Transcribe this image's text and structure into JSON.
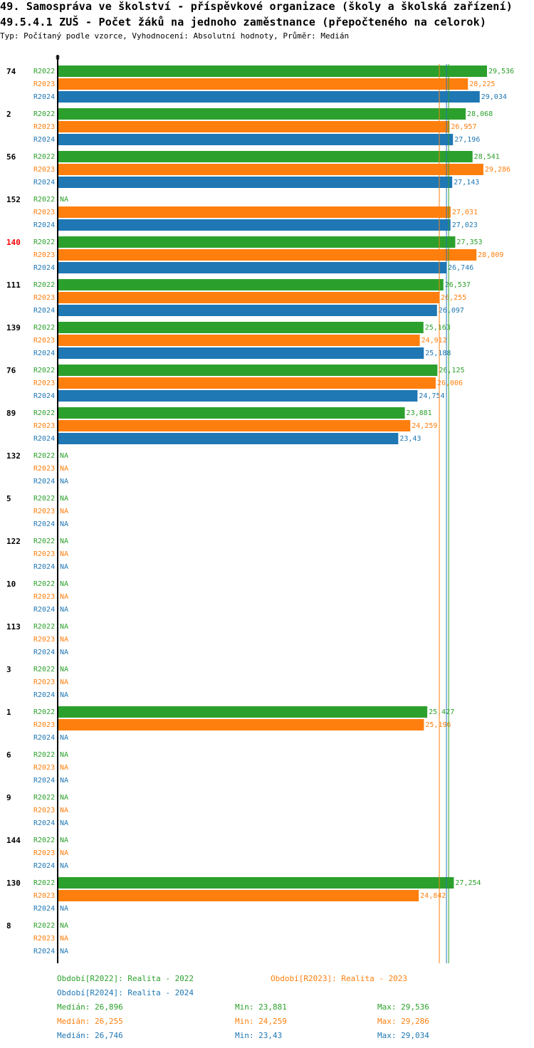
{
  "header": {
    "title_line1": "49. Samospráva ve školství - příspěvkové organizace (školy a školská zařízení)",
    "title_line2": "49.5.4.1 ZUŠ - Počet žáků na jednoho zaměstnance (přepočteného na celorok)",
    "subtitle": "Typ: Počítaný podle vzorce, Vyhodnocení: Absolutní hodnoty, Průměr: Medián"
  },
  "colors": {
    "R2022": "#2ca02c",
    "R2023": "#ff7f0e",
    "R2024": "#1f77b4",
    "highlight_label": "#ff0000"
  },
  "chart_data": {
    "type": "bar",
    "orientation": "horizontal",
    "axis_zero_label": "0",
    "xlim": [
      0,
      29.536
    ],
    "na_label": "NA",
    "highlight_category": "140",
    "series_names": [
      "R2022",
      "R2023",
      "R2024"
    ],
    "categories": [
      "74",
      "2",
      "56",
      "152",
      "140",
      "111",
      "139",
      "76",
      "89",
      "132",
      "5",
      "122",
      "10",
      "113",
      "3",
      "1",
      "6",
      "9",
      "144",
      "130",
      "8"
    ],
    "series": [
      {
        "name": "R2022",
        "values": [
          29.536,
          28.068,
          28.541,
          null,
          27.353,
          26.537,
          25.163,
          26.125,
          23.881,
          null,
          null,
          null,
          null,
          null,
          null,
          25.427,
          null,
          null,
          null,
          27.254,
          null
        ]
      },
      {
        "name": "R2023",
        "values": [
          28.225,
          26.957,
          29.286,
          27.031,
          28.809,
          26.255,
          24.912,
          26.006,
          24.259,
          null,
          null,
          null,
          null,
          null,
          null,
          25.196,
          null,
          null,
          null,
          24.842,
          null
        ]
      },
      {
        "name": "R2024",
        "values": [
          29.034,
          27.196,
          27.143,
          27.023,
          26.746,
          26.097,
          25.188,
          24.754,
          23.43,
          null,
          null,
          null,
          null,
          null,
          null,
          null,
          null,
          null,
          null,
          null,
          null
        ]
      }
    ],
    "value_labels": [
      [
        "29,536",
        "28,225",
        "29,034"
      ],
      [
        "28,068",
        "26,957",
        "27,196"
      ],
      [
        "28,541",
        "29,286",
        "27,143"
      ],
      [
        "NA",
        "27,031",
        "27,023"
      ],
      [
        "27,353",
        "28,809",
        "26,746"
      ],
      [
        "26,537",
        "26,255",
        "26,097"
      ],
      [
        "25,163",
        "24,912",
        "25,188"
      ],
      [
        "26,125",
        "26,006",
        "24,754"
      ],
      [
        "23,881",
        "24,259",
        "23,43"
      ],
      [
        "NA",
        "NA",
        "NA"
      ],
      [
        "NA",
        "NA",
        "NA"
      ],
      [
        "NA",
        "NA",
        "NA"
      ],
      [
        "NA",
        "NA",
        "NA"
      ],
      [
        "NA",
        "NA",
        "NA"
      ],
      [
        "NA",
        "NA",
        "NA"
      ],
      [
        "25,427",
        "25,196",
        "NA"
      ],
      [
        "NA",
        "NA",
        "NA"
      ],
      [
        "NA",
        "NA",
        "NA"
      ],
      [
        "NA",
        "NA",
        "NA"
      ],
      [
        "27,254",
        "24,842",
        "NA"
      ],
      [
        "NA",
        "NA",
        "NA"
      ]
    ],
    "median_lines": [
      {
        "series": "R2022",
        "value": 26.896
      },
      {
        "series": "R2023",
        "value": 26.255
      },
      {
        "series": "R2024",
        "value": 26.746
      }
    ]
  },
  "legend": {
    "period_2022": "Období[R2022]: Realita - 2022",
    "period_2023": "Období[R2023]: Realita - 2023",
    "period_2024": "Období[R2024]: Realita - 2024",
    "stats": [
      {
        "median": "Medián: 26,896",
        "min": "Min: 23,881",
        "max": "Max: 29,536"
      },
      {
        "median": "Medián: 26,255",
        "min": "Min: 24,259",
        "max": "Max: 29,286"
      },
      {
        "median": "Medián: 26,746",
        "min": "Min: 23,43",
        "max": "Max: 29,034"
      }
    ]
  }
}
